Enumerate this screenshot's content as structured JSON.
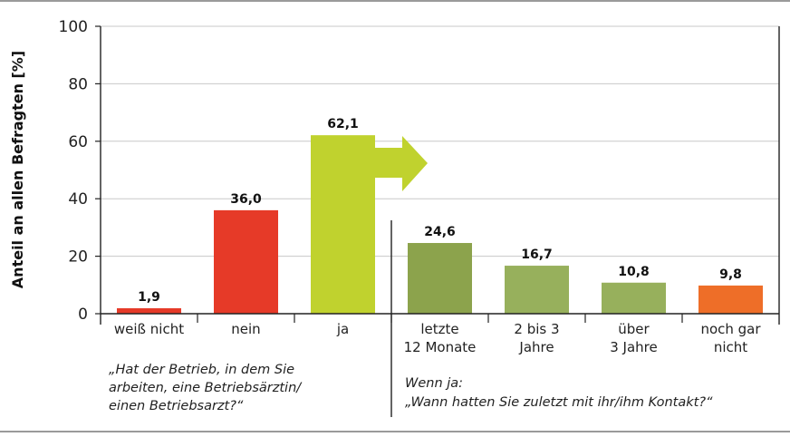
{
  "chart_data": {
    "type": "bar",
    "ylabel": "Anteil an allen Befragten [%]",
    "ylim": [
      0,
      100
    ],
    "yticks": [
      "0",
      "20",
      "40",
      "60",
      "80",
      "100"
    ],
    "grid": true,
    "categories": [
      {
        "label": [
          "weiß nicht"
        ],
        "value": 1.9,
        "value_label": "1,9",
        "color": "#e63a28"
      },
      {
        "label": [
          "nein"
        ],
        "value": 36.0,
        "value_label": "36,0",
        "color": "#e63a28"
      },
      {
        "label": [
          "ja"
        ],
        "value": 62.1,
        "value_label": "62,1",
        "color": "#c0d22e"
      },
      {
        "label": [
          "letzte",
          "12 Monate"
        ],
        "value": 24.6,
        "value_label": "24,6",
        "color": "#8ca34c"
      },
      {
        "label": [
          "2 bis 3",
          "Jahre"
        ],
        "value": 16.7,
        "value_label": "16,7",
        "color": "#97b05c"
      },
      {
        "label": [
          "über",
          "3 Jahre"
        ],
        "value": 10.8,
        "value_label": "10,8",
        "color": "#97b05c"
      },
      {
        "label": [
          "noch gar",
          "nicht"
        ],
        "value": 9.8,
        "value_label": "9,8",
        "color": "#ee6e28"
      }
    ],
    "annotations": {
      "question1": [
        "„Hat der Betrieb, in dem Sie",
        "arbeiten, eine Betriebsärztin/",
        "einen Betriebsarzt?“"
      ],
      "question2": [
        "Wenn ja:",
        "„Wann hatten Sie zuletzt mit ihr/ihm Kontakt?“"
      ],
      "arrow_color": "#c0d22e"
    }
  }
}
